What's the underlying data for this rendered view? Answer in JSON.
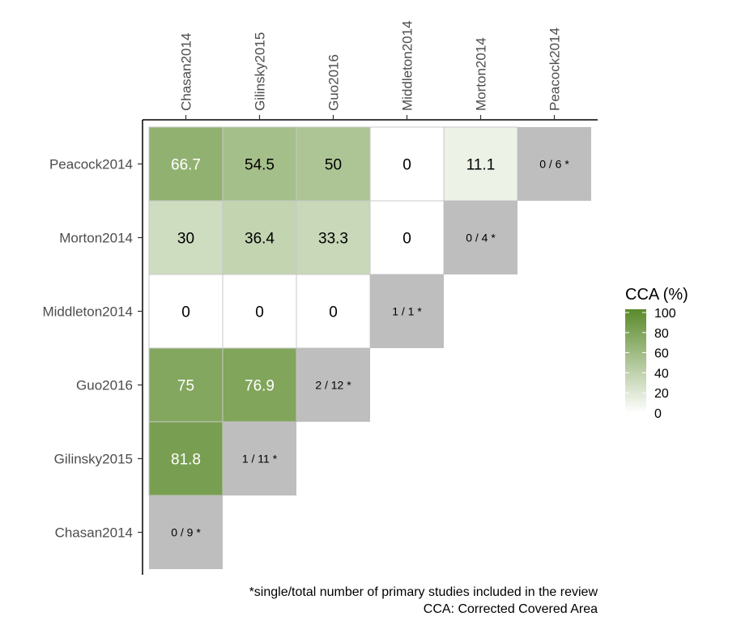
{
  "chart_data": {
    "type": "heatmap",
    "title": "",
    "columns": [
      "Chasan2014",
      "Gilinsky2015",
      "Guo2016",
      "Middleton2014",
      "Morton2014",
      "Peacock2014"
    ],
    "rows": [
      "Peacock2014",
      "Morton2014",
      "Middleton2014",
      "Guo2016",
      "Gilinsky2015",
      "Chasan2014"
    ],
    "cells": [
      {
        "row": "Peacock2014",
        "col": "Chasan2014",
        "value": 66.7,
        "label": "66.7"
      },
      {
        "row": "Peacock2014",
        "col": "Gilinsky2015",
        "value": 54.5,
        "label": "54.5"
      },
      {
        "row": "Peacock2014",
        "col": "Guo2016",
        "value": 50,
        "label": "50"
      },
      {
        "row": "Peacock2014",
        "col": "Middleton2014",
        "value": 0,
        "label": "0"
      },
      {
        "row": "Peacock2014",
        "col": "Morton2014",
        "value": 11.1,
        "label": "11.1"
      },
      {
        "row": "Morton2014",
        "col": "Chasan2014",
        "value": 30,
        "label": "30"
      },
      {
        "row": "Morton2014",
        "col": "Gilinsky2015",
        "value": 36.4,
        "label": "36.4"
      },
      {
        "row": "Morton2014",
        "col": "Guo2016",
        "value": 33.3,
        "label": "33.3"
      },
      {
        "row": "Morton2014",
        "col": "Middleton2014",
        "value": 0,
        "label": "0"
      },
      {
        "row": "Middleton2014",
        "col": "Chasan2014",
        "value": 0,
        "label": "0"
      },
      {
        "row": "Middleton2014",
        "col": "Gilinsky2015",
        "value": 0,
        "label": "0"
      },
      {
        "row": "Middleton2014",
        "col": "Guo2016",
        "value": 0,
        "label": "0"
      },
      {
        "row": "Guo2016",
        "col": "Chasan2014",
        "value": 75,
        "label": "75"
      },
      {
        "row": "Guo2016",
        "col": "Gilinsky2015",
        "value": 76.9,
        "label": "76.9"
      },
      {
        "row": "Gilinsky2015",
        "col": "Chasan2014",
        "value": 81.8,
        "label": "81.8"
      }
    ],
    "diagonal": [
      {
        "study": "Peacock2014",
        "label": "0 / 6 *"
      },
      {
        "study": "Morton2014",
        "label": "0 / 4 *"
      },
      {
        "study": "Middleton2014",
        "label": "1 / 1 *"
      },
      {
        "study": "Guo2016",
        "label": "2 / 12 *"
      },
      {
        "study": "Gilinsky2015",
        "label": "1 / 11 *"
      },
      {
        "study": "Chasan2014",
        "label": "0 / 9 *"
      }
    ],
    "legend": {
      "title": "CCA (%)",
      "min": 0,
      "max": 100,
      "ticks": [
        0,
        20,
        40,
        60,
        80,
        100
      ],
      "low_color": "#ffffff",
      "high_color": "#5a8a2a",
      "placement": "right"
    },
    "diagonal_color": "#bebebe",
    "cell_border_color": "#c8c8c8",
    "text_light_color": "#ffffff",
    "text_dark_color": "#000000"
  },
  "captions": [
    "*single/total number of primary studies included in the review",
    "CCA: Corrected Covered Area"
  ]
}
